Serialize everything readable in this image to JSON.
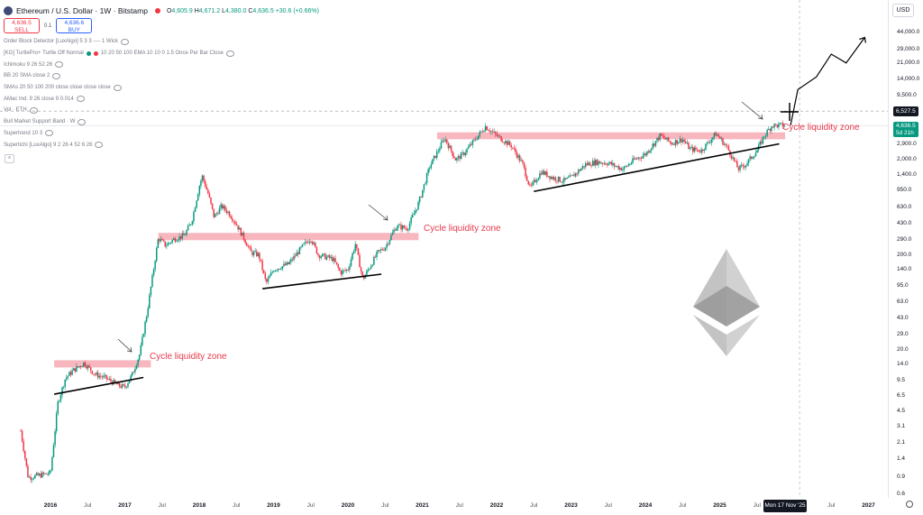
{
  "header": {
    "title": "Ethereum / U.S. Dollar · 1W · Bitstamp",
    "o_label": "O",
    "o": "4,605.9",
    "h_label": "H",
    "h": "4,671.2",
    "l_label": "L",
    "l": "4,380.0",
    "c_label": "C",
    "c": "4,636.5",
    "change": "+30.6 (+0.66%)"
  },
  "trade": {
    "sell_price": "4,636.5",
    "sell_label": "SELL",
    "spread": "0.1",
    "buy_price": "4,636.6",
    "buy_label": "BUY"
  },
  "indicators": [
    "Order Block Detector [LuxAlgo] 5 3 3 ---- 1 Wick",
    "[KG] TurtlePro+ Turtle Off Normal",
    "Ichimoku 9 26 52 26",
    "BB 20 SMA close 2",
    "SMAs 20 50 100 200 close close close close",
    "AMac Ind. 9 26 close 9 0.014",
    "Vol · ETH",
    "Bull Market Support Band · W",
    "Supertrend 10 3",
    "Supertichi [LuxAlgo] 9 2 26 4 52 6 26"
  ],
  "turtle_params": "10 20 50 100 EMA 10 10 0 1.5 Once Per Bar Close",
  "currency": "USD",
  "price_labels": {
    "current": "4,636.5",
    "countdown": "5d 21h",
    "crosshair": "6,527.5"
  },
  "date_label": "Mon 17 Nov '25",
  "colors": {
    "up": "#089981",
    "down": "#f23645",
    "zone": "#f7a9b4",
    "zone_text": "#e8394b",
    "eth_logo": "#b8b8b8"
  },
  "chart_data": {
    "type": "candlestick",
    "scale": "log",
    "ylim": [
      0.6,
      65000
    ],
    "y_ticks": [
      0.6,
      0.9,
      1.4,
      2.1,
      3.1,
      4.5,
      6.5,
      9.5,
      14,
      20,
      29,
      43,
      63,
      95,
      140,
      200,
      290,
      430,
      630,
      950,
      1400,
      2000,
      2900,
      4300,
      6300,
      9500,
      14000,
      21000,
      29000,
      44000
    ],
    "y_tick_labels": [
      "0.6",
      "0.9",
      "1.4",
      "2.1",
      "3.1",
      "4.5",
      "6.5",
      "9.5",
      "14.0",
      "20.0",
      "29.0",
      "43.0",
      "63.0",
      "95.0",
      "140.0",
      "200.0",
      "290.0",
      "430.0",
      "630.0",
      "950.0",
      "1,400.0",
      "2,000.0",
      "2,900.0",
      "4,300.0",
      "6,300.0",
      "9,500.0",
      "14,000.0",
      "21,000.0",
      "29,000.0",
      "44,000.0"
    ],
    "x_ticks": [
      {
        "label": "2016",
        "t": 2016.0,
        "major": true
      },
      {
        "label": "Jul",
        "t": 2016.5,
        "major": false
      },
      {
        "label": "2017",
        "t": 2017.0,
        "major": true
      },
      {
        "label": "Jul",
        "t": 2017.5,
        "major": false
      },
      {
        "label": "2018",
        "t": 2018.0,
        "major": true
      },
      {
        "label": "Jul",
        "t": 2018.5,
        "major": false
      },
      {
        "label": "2019",
        "t": 2019.0,
        "major": true
      },
      {
        "label": "Jul",
        "t": 2019.5,
        "major": false
      },
      {
        "label": "2020",
        "t": 2020.0,
        "major": true
      },
      {
        "label": "Jul",
        "t": 2020.5,
        "major": false
      },
      {
        "label": "2021",
        "t": 2021.0,
        "major": true
      },
      {
        "label": "Jul",
        "t": 2021.5,
        "major": false
      },
      {
        "label": "2022",
        "t": 2022.0,
        "major": true
      },
      {
        "label": "Jul",
        "t": 2022.5,
        "major": false
      },
      {
        "label": "2023",
        "t": 2023.0,
        "major": true
      },
      {
        "label": "Jul",
        "t": 2023.5,
        "major": false
      },
      {
        "label": "2024",
        "t": 2024.0,
        "major": true
      },
      {
        "label": "Jul",
        "t": 2024.5,
        "major": false
      },
      {
        "label": "2025",
        "t": 2025.0,
        "major": true
      },
      {
        "label": "Jul",
        "t": 2025.5,
        "major": false
      },
      {
        "label": "Jul",
        "t": 2026.5,
        "major": false
      },
      {
        "label": "2027",
        "t": 2027.0,
        "major": true
      }
    ],
    "price_path": [
      [
        2015.6,
        2.8
      ],
      [
        2015.7,
        0.9
      ],
      [
        2015.85,
        0.95
      ],
      [
        2016.0,
        1.0
      ],
      [
        2016.1,
        5.5
      ],
      [
        2016.2,
        10
      ],
      [
        2016.3,
        12
      ],
      [
        2016.45,
        14.5
      ],
      [
        2016.6,
        11
      ],
      [
        2016.75,
        10
      ],
      [
        2016.9,
        8.5
      ],
      [
        2017.0,
        8.0
      ],
      [
        2017.1,
        11
      ],
      [
        2017.2,
        18
      ],
      [
        2017.3,
        50
      ],
      [
        2017.45,
        300
      ],
      [
        2017.55,
        250
      ],
      [
        2017.65,
        290
      ],
      [
        2017.8,
        320
      ],
      [
        2017.9,
        450
      ],
      [
        2018.0,
        1050
      ],
      [
        2018.04,
        1350
      ],
      [
        2018.12,
        880
      ],
      [
        2018.2,
        500
      ],
      [
        2018.3,
        650
      ],
      [
        2018.4,
        550
      ],
      [
        2018.5,
        420
      ],
      [
        2018.6,
        300
      ],
      [
        2018.7,
        210
      ],
      [
        2018.8,
        200
      ],
      [
        2018.9,
        100
      ],
      [
        2019.0,
        140
      ],
      [
        2019.2,
        160
      ],
      [
        2019.4,
        250
      ],
      [
        2019.5,
        300
      ],
      [
        2019.6,
        200
      ],
      [
        2019.8,
        180
      ],
      [
        2019.9,
        130
      ],
      [
        2020.0,
        140
      ],
      [
        2020.1,
        260
      ],
      [
        2020.2,
        110
      ],
      [
        2020.4,
        210
      ],
      [
        2020.5,
        240
      ],
      [
        2020.65,
        400
      ],
      [
        2020.8,
        380
      ],
      [
        2020.95,
        700
      ],
      [
        2021.1,
        1700
      ],
      [
        2021.3,
        3400
      ],
      [
        2021.45,
        2000
      ],
      [
        2021.55,
        2300
      ],
      [
        2021.7,
        3200
      ],
      [
        2021.85,
        4500
      ],
      [
        2022.0,
        3600
      ],
      [
        2022.2,
        2800
      ],
      [
        2022.35,
        1800
      ],
      [
        2022.45,
        1000
      ],
      [
        2022.6,
        1500
      ],
      [
        2022.75,
        1300
      ],
      [
        2022.9,
        1200
      ],
      [
        2023.0,
        1300
      ],
      [
        2023.2,
        1800
      ],
      [
        2023.35,
        1900
      ],
      [
        2023.5,
        1850
      ],
      [
        2023.7,
        1600
      ],
      [
        2023.85,
        2000
      ],
      [
        2024.0,
        2300
      ],
      [
        2024.2,
        3600
      ],
      [
        2024.35,
        3000
      ],
      [
        2024.5,
        3300
      ],
      [
        2024.6,
        2600
      ],
      [
        2024.75,
        2500
      ],
      [
        2024.95,
        3800
      ],
      [
        2025.1,
        2700
      ],
      [
        2025.25,
        1600
      ],
      [
        2025.35,
        1800
      ],
      [
        2025.5,
        2500
      ],
      [
        2025.6,
        3600
      ],
      [
        2025.7,
        4600
      ],
      [
        2025.88,
        4636.5
      ]
    ],
    "liquidity_zones": [
      {
        "label": "Cycle liquidity zone",
        "t_start": 2016.05,
        "t_end": 2017.35,
        "low": 13,
        "high": 15.5
      },
      {
        "label": "Cycle liquidity zone",
        "t_start": 2017.45,
        "t_end": 2020.95,
        "low": 285,
        "high": 340
      },
      {
        "label": "Cycle liquidity zone",
        "t_start": 2021.2,
        "t_end": 2025.88,
        "low": 3300,
        "high": 3900
      }
    ],
    "trendlines": [
      {
        "t1": 2016.05,
        "p1": 6.8,
        "t2": 2017.25,
        "p2": 10.2
      },
      {
        "t1": 2018.85,
        "p1": 88,
        "t2": 2020.45,
        "p2": 125
      },
      {
        "t1": 2022.5,
        "p1": 930,
        "t2": 2025.8,
        "p2": 2950
      }
    ],
    "projection": [
      [
        2025.88,
        4636.5
      ],
      [
        2026.05,
        11000
      ],
      [
        2026.3,
        15000
      ],
      [
        2026.5,
        26000
      ],
      [
        2026.7,
        21000
      ],
      [
        2026.95,
        39000
      ]
    ],
    "horizontal_level": 6527.5,
    "last_bar_t": 2025.88
  }
}
